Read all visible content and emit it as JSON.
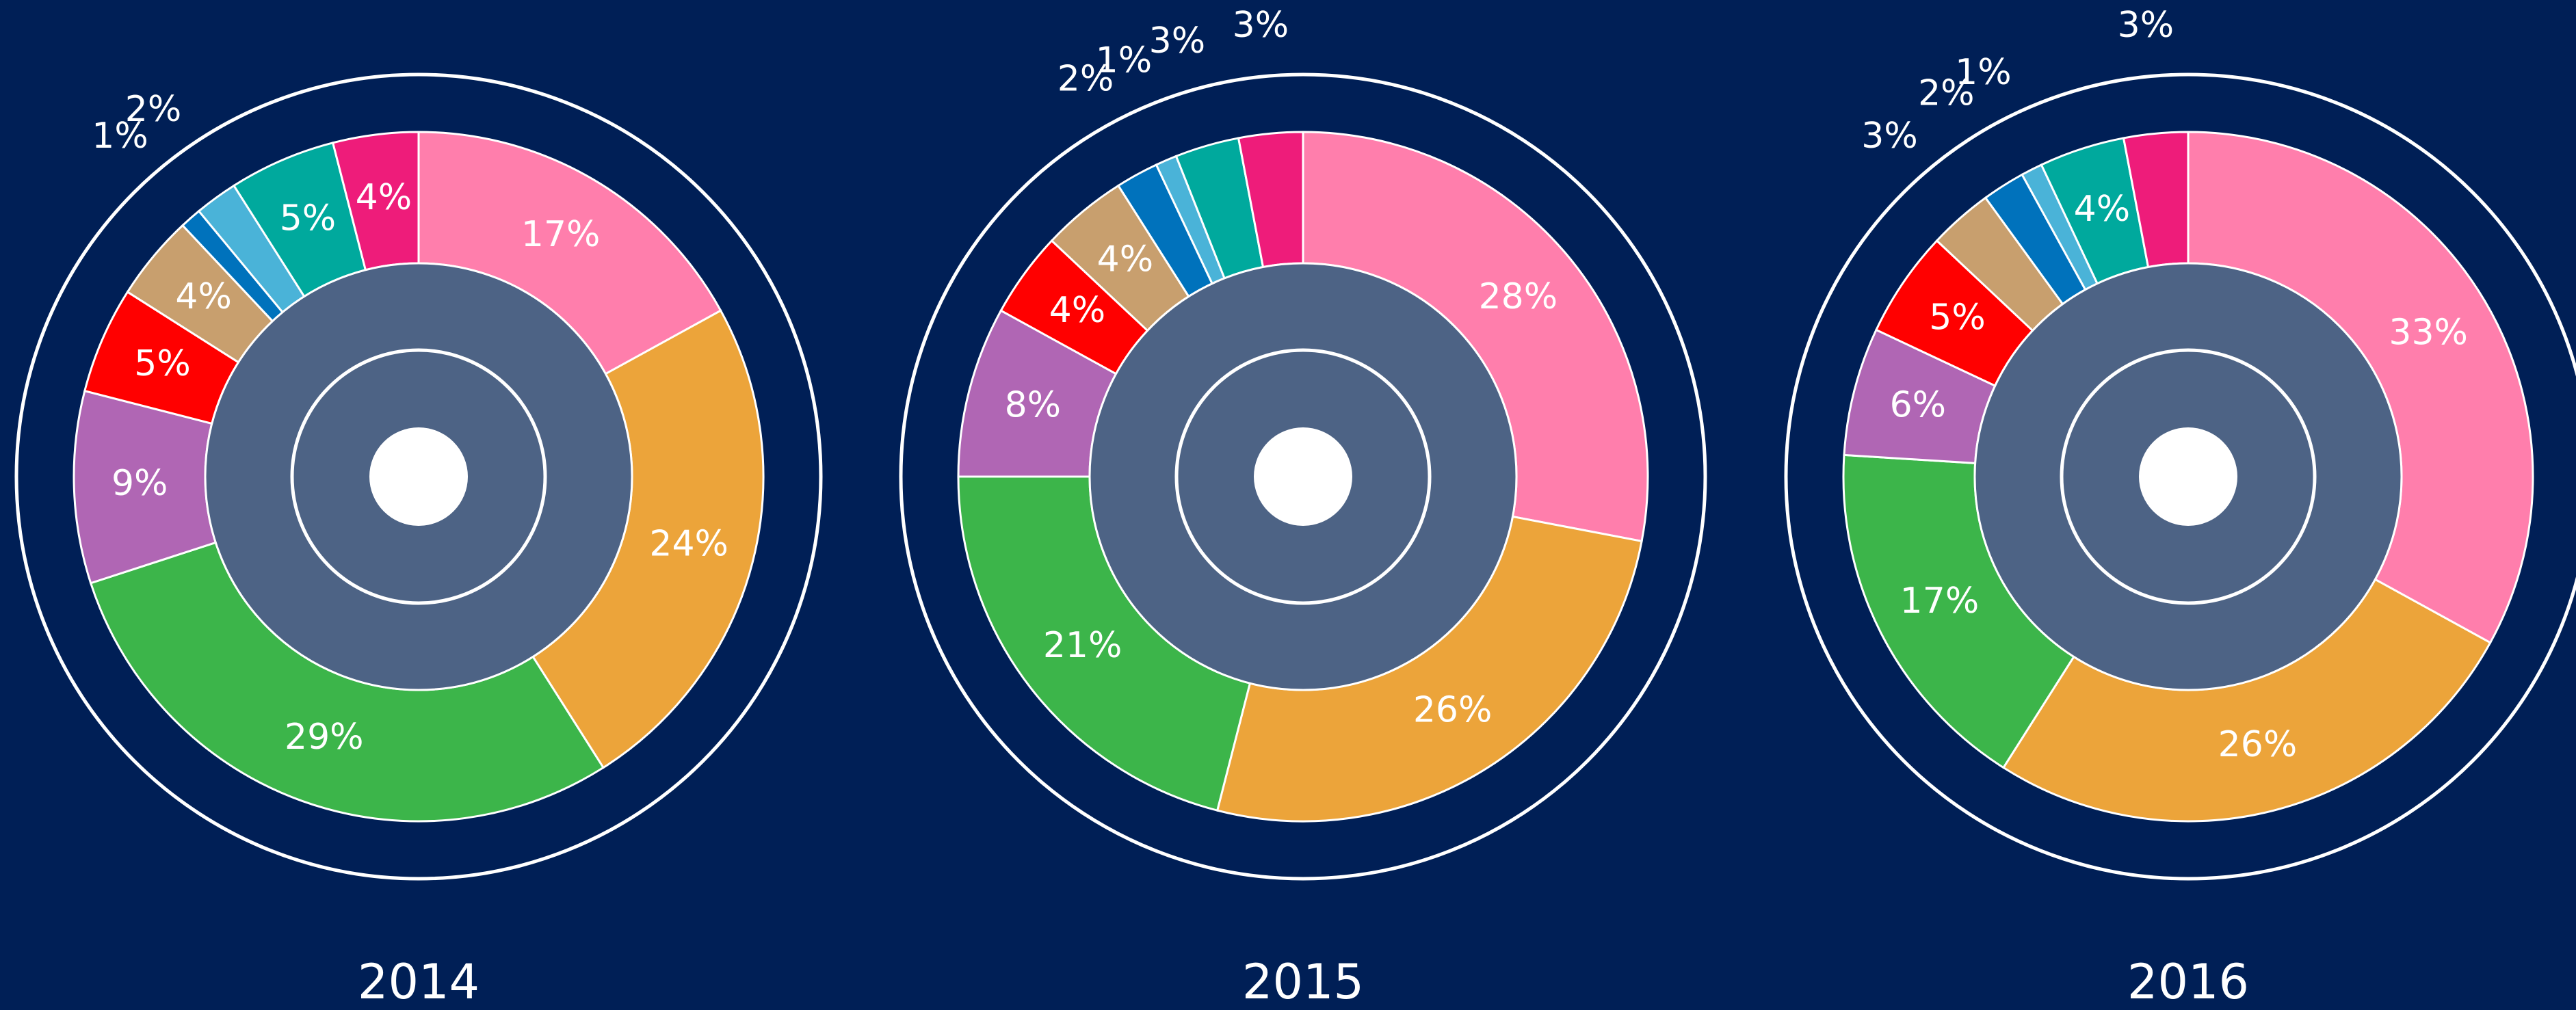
{
  "chart_data": [
    {
      "type": "pie",
      "title": "2014",
      "values": [
        17,
        24,
        29,
        9,
        5,
        4,
        1,
        2,
        5,
        4
      ],
      "value_labels": [
        "17%",
        "24%",
        "29%",
        "9%",
        "5%",
        "4%",
        "1%",
        "2%",
        "5%",
        "4%"
      ],
      "colors": [
        "#ff7eac",
        "#eca43a",
        "#3cb54a",
        "#b066b4",
        "#ff0000",
        "#c89f6e",
        "#0072bc",
        "#4ab3d8",
        "#00a99d",
        "#ee1c7a"
      ]
    },
    {
      "type": "pie",
      "title": "2015",
      "values": [
        28,
        26,
        21,
        8,
        4,
        4,
        2,
        1,
        3,
        3
      ],
      "value_labels": [
        "28%",
        "26%",
        "21%",
        "8%",
        "4%",
        "4%",
        "2%",
        "1%",
        "3%",
        "3%"
      ],
      "colors": [
        "#ff7eac",
        "#eca43a",
        "#3cb54a",
        "#b066b4",
        "#ff0000",
        "#c89f6e",
        "#0072bc",
        "#4ab3d8",
        "#00a99d",
        "#ee1c7a"
      ]
    },
    {
      "type": "pie",
      "title": "2016",
      "values": [
        33,
        26,
        17,
        6,
        5,
        3,
        2,
        1,
        4,
        3
      ],
      "value_labels": [
        "33%",
        "26%",
        "17%",
        "6%",
        "5%",
        "3%",
        "2%",
        "1%",
        "4%",
        "3%"
      ],
      "colors": [
        "#ff7eac",
        "#eca43a",
        "#3cb54a",
        "#b066b4",
        "#ff0000",
        "#c89f6e",
        "#0072bc",
        "#4ab3d8",
        "#00a99d",
        "#ee1c7a"
      ]
    }
  ]
}
